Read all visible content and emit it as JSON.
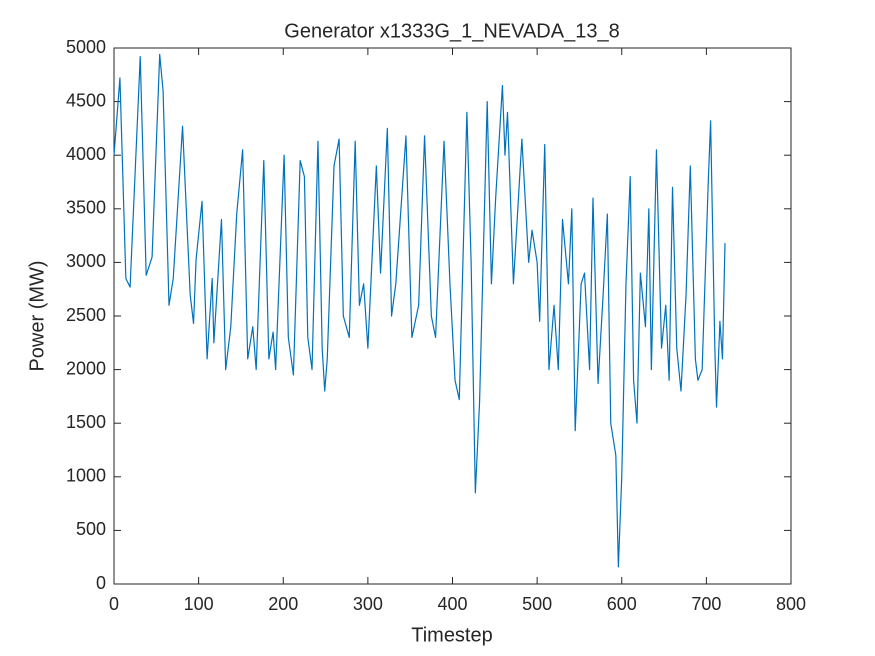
{
  "chart_data": {
    "type": "line",
    "title": "Generator x1333G_1_NEVADA_13_8",
    "x_label": "Timestep",
    "y_label": "Power (MW)",
    "color": "#0072bd",
    "x": [
      0,
      7,
      14,
      19,
      31,
      38,
      45,
      54,
      58,
      65,
      70,
      81,
      90,
      94,
      97,
      104,
      110,
      116,
      118,
      127,
      132,
      138,
      145,
      152,
      158,
      164,
      168,
      177,
      183,
      188,
      191,
      201,
      206,
      212,
      220,
      225,
      229,
      234,
      241,
      246,
      249,
      252,
      260,
      266,
      271,
      278,
      285,
      290,
      295,
      300,
      310,
      315,
      323,
      328,
      333,
      345,
      352,
      360,
      367,
      375,
      380,
      390,
      397,
      403,
      408,
      417,
      422,
      427,
      432,
      441,
      446,
      451,
      459,
      462,
      465,
      472,
      482,
      490,
      494,
      500,
      503,
      509,
      514,
      520,
      525,
      530,
      537,
      541,
      545,
      552,
      556,
      562,
      566,
      572,
      578,
      583,
      587,
      593,
      596,
      600,
      605,
      610,
      614,
      618,
      622,
      628,
      632,
      635,
      641,
      647,
      652,
      656,
      660,
      665,
      670,
      676,
      681,
      687,
      690,
      695,
      702,
      705,
      710,
      712,
      716,
      719,
      722
    ],
    "values": [
      4000,
      4720,
      2850,
      2770,
      4920,
      2880,
      3050,
      4940,
      4600,
      2600,
      2850,
      4270,
      2700,
      2430,
      3030,
      3570,
      2100,
      2850,
      2250,
      3400,
      2000,
      2400,
      3450,
      4050,
      2100,
      2400,
      2000,
      3950,
      2100,
      2350,
      2000,
      4000,
      2300,
      1950,
      3950,
      3800,
      2300,
      2000,
      4130,
      2200,
      1800,
      2100,
      3900,
      4150,
      2500,
      2300,
      4130,
      2600,
      2800,
      2200,
      3900,
      2900,
      4250,
      2500,
      2800,
      4180,
      2300,
      2600,
      4180,
      2500,
      2300,
      4130,
      2800,
      1900,
      1720,
      4400,
      3000,
      850,
      1700,
      4500,
      2800,
      3600,
      4650,
      4000,
      4400,
      2800,
      4150,
      3000,
      3300,
      3000,
      2450,
      4100,
      2000,
      2600,
      2000,
      3400,
      2800,
      3500,
      1430,
      2800,
      2900,
      2000,
      3600,
      1870,
      2700,
      3450,
      1500,
      1200,
      160,
      1000,
      2800,
      3800,
      1900,
      1500,
      2900,
      2400,
      3500,
      2000,
      4050,
      2200,
      2600,
      1900,
      3700,
      2200,
      1800,
      2700,
      3900,
      2100,
      1900,
      2000,
      3700,
      4320,
      2200,
      1650,
      2450,
      2100,
      3180
    ],
    "xlim": [
      0,
      800
    ],
    "xticks": [
      0,
      100,
      200,
      300,
      400,
      500,
      600,
      700,
      800
    ],
    "ylim": [
      0,
      5000
    ],
    "yticks": [
      0,
      500,
      1000,
      1500,
      2000,
      2500,
      3000,
      3500,
      4000,
      4500,
      5000
    ]
  }
}
